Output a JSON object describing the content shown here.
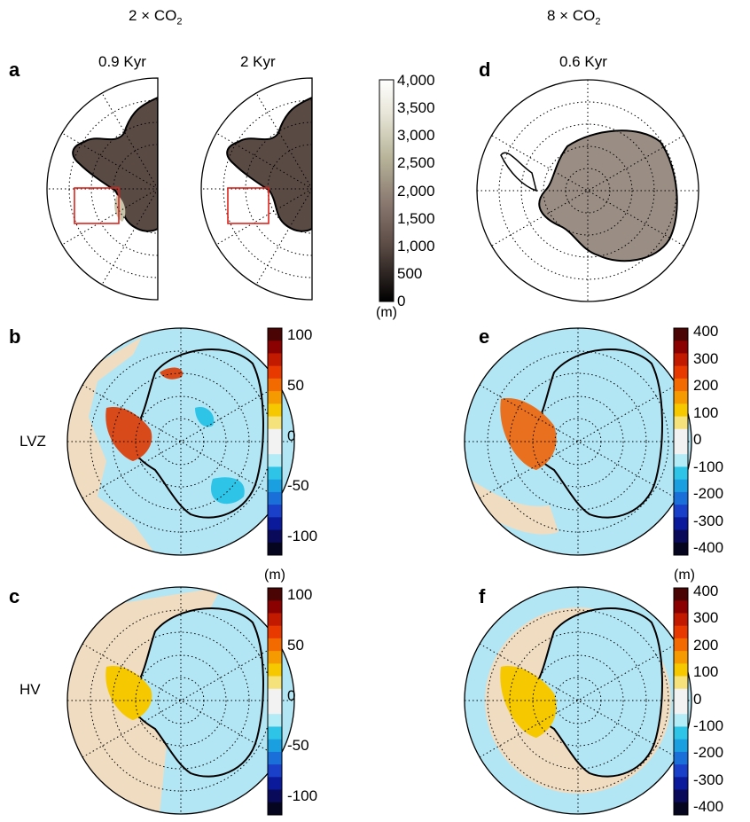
{
  "headers": {
    "left_prefix": "2 × CO",
    "left_sub": "2",
    "right_prefix": "8 × CO",
    "right_sub": "2"
  },
  "times": {
    "a1": "0.9 Kyr",
    "a2": "2 Kyr",
    "d": "0.6 Kyr"
  },
  "panels": {
    "a": "a",
    "b": "b",
    "c": "c",
    "d": "d",
    "e": "e",
    "f": "f"
  },
  "rows": {
    "b": "LVZ",
    "c": "HV"
  },
  "colorbar_elev": {
    "ticks": [
      "4,000",
      "3,500",
      "3,000",
      "2,500",
      "2,000",
      "1,500",
      "1,000",
      "500",
      "0"
    ],
    "unit": "(m)"
  },
  "colorbar_bc": {
    "ticks": [
      "100",
      "50",
      "0",
      "-50",
      "-100"
    ],
    "unit": "(m)"
  },
  "colorbar_ef": {
    "ticks": [
      "400",
      "300",
      "200",
      "100",
      "0",
      "-100",
      "-200",
      "-300",
      "-400"
    ],
    "unit": "(m)"
  },
  "colors": {
    "ocean_blue": "#b3e6f4",
    "sand": "#f0dcc0",
    "ice_dark": "#4a3a34",
    "rect_red": "#e0231c",
    "thickening": "#f5c800",
    "thinning": "#2ec4e8"
  }
}
